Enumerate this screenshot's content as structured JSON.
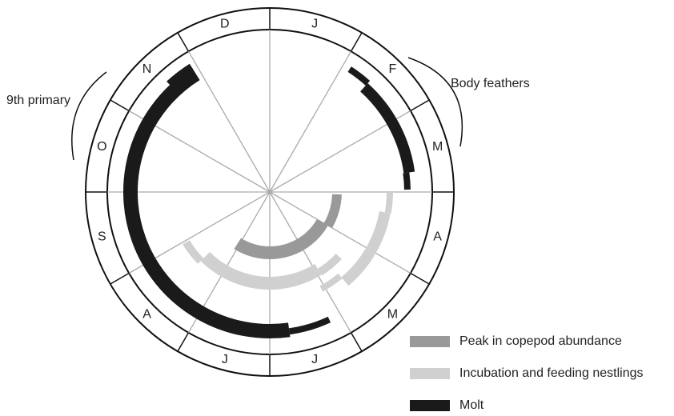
{
  "diagram": {
    "months": [
      "J",
      "F",
      "M",
      "A",
      "M",
      "J",
      "J",
      "A",
      "S",
      "O",
      "N",
      "D"
    ],
    "annotations": {
      "left": "9th primary",
      "right": "Body feathers"
    },
    "legend": [
      {
        "label": "Peak in copepod abundance",
        "color": "#999999"
      },
      {
        "label": "Incubation and feeding nestlings",
        "color": "#d0d0d0"
      },
      {
        "label": "Molt",
        "color": "#1a1a1a"
      }
    ]
  }
}
